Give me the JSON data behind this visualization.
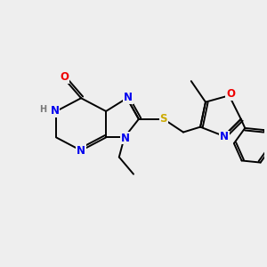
{
  "bg_color": "#eeeeee",
  "atom_colors": {
    "N": "#0000ee",
    "O": "#ee0000",
    "S": "#ccaa00",
    "H": "#777777",
    "C": "#000000"
  },
  "font_size": 8.5,
  "lw": 1.4
}
